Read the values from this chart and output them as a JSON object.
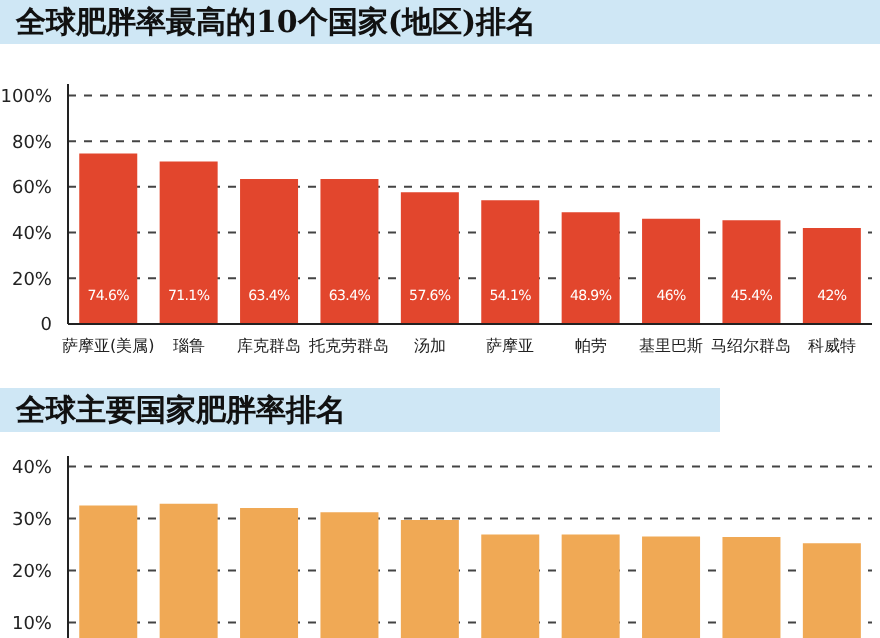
{
  "chart_data": [
    {
      "type": "bar",
      "title": "全球肥胖率最高的10个国家(地区)排名",
      "categories": [
        "萨摩亚(美属)",
        "瑙鲁",
        "库克群岛",
        "托克劳群岛",
        "汤加",
        "萨摩亚",
        "帕劳",
        "基里巴斯",
        "马绍尔群岛",
        "科威特"
      ],
      "values": [
        74.6,
        71.1,
        63.4,
        63.4,
        57.6,
        54.1,
        48.9,
        46,
        45.4,
        42
      ],
      "value_labels": [
        "74.6%",
        "71.1%",
        "63.4%",
        "63.4%",
        "57.6%",
        "54.1%",
        "48.9%",
        "46%",
        "45.4%",
        "42%"
      ],
      "color": "#e2462d",
      "ylim": [
        0,
        105
      ],
      "yticks": [
        {
          "value": 0,
          "label": "0"
        },
        {
          "value": 20,
          "label": "20%"
        },
        {
          "value": 40,
          "label": "40%"
        },
        {
          "value": 60,
          "label": "60%"
        },
        {
          "value": 80,
          "label": "80%"
        },
        {
          "value": 100,
          "label": "100%"
        }
      ],
      "grid": "y"
    },
    {
      "type": "bar",
      "title": "全球主要国家肥胖率排名",
      "categories": [
        null,
        null,
        null,
        null,
        null,
        null,
        null,
        null,
        null,
        null
      ],
      "values": [
        32.5,
        32.8,
        32,
        31.2,
        29.7,
        26.9,
        26.9,
        26.5,
        26.4,
        25.2
      ],
      "color": "#f0a955",
      "ylim": [
        7,
        42
      ],
      "yticks": [
        {
          "value": 10,
          "label": "10%"
        },
        {
          "value": 20,
          "label": "20%"
        },
        {
          "value": 30,
          "label": "30%"
        },
        {
          "value": 40,
          "label": "40%"
        }
      ],
      "grid": "y",
      "tick_labels": "y"
    }
  ]
}
